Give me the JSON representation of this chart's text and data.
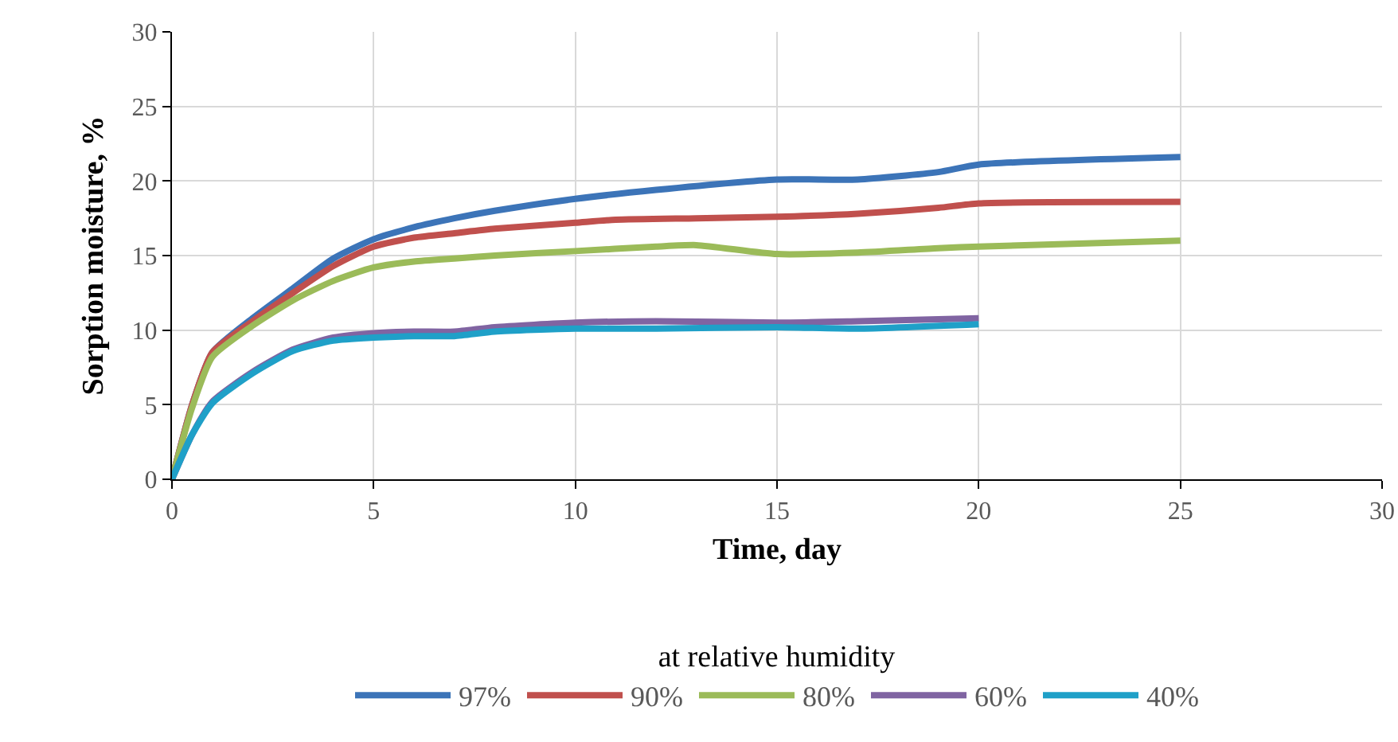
{
  "chart_data": {
    "type": "line",
    "xlabel": "Time, day",
    "ylabel": "Sorption moisture, %",
    "legend_title": "at relative humidity",
    "legend": "bottom",
    "grid": true,
    "line_style": "solid",
    "marker": "none",
    "xlim": [
      0,
      30
    ],
    "xticks": [
      0,
      5,
      10,
      15,
      20,
      25,
      30
    ],
    "ylim": [
      0,
      30
    ],
    "yticks": [
      0,
      5,
      10,
      15,
      20,
      25,
      30
    ],
    "series": [
      {
        "name": "97%",
        "color": "#3c74b8",
        "x": [
          0,
          0.5,
          1,
          2,
          3,
          4,
          5,
          6,
          7,
          8,
          10,
          12,
          15,
          17,
          19,
          20,
          25
        ],
        "values": [
          0,
          5,
          8.5,
          10.8,
          12.8,
          14.8,
          16.1,
          16.9,
          17.5,
          18.0,
          18.8,
          19.4,
          20.1,
          20.1,
          20.6,
          21.1,
          21.6
        ]
      },
      {
        "name": "90%",
        "color": "#c0504d",
        "x": [
          0,
          0.5,
          1,
          2,
          3,
          4,
          5,
          6,
          7,
          8,
          10,
          11,
          13,
          15,
          17,
          19,
          20,
          25
        ],
        "values": [
          0,
          5,
          8.5,
          10.6,
          12.5,
          14.3,
          15.6,
          16.2,
          16.5,
          16.8,
          17.2,
          17.4,
          17.5,
          17.6,
          17.8,
          18.2,
          18.5,
          18.6
        ]
      },
      {
        "name": "80%",
        "color": "#9bbb59",
        "x": [
          0,
          0.5,
          1,
          2,
          3,
          4,
          5,
          6,
          7,
          8,
          10,
          12,
          13,
          15,
          17,
          19,
          20,
          25
        ],
        "values": [
          0,
          4.8,
          8.2,
          10.3,
          12.0,
          13.3,
          14.2,
          14.6,
          14.8,
          15.0,
          15.3,
          15.6,
          15.7,
          15.1,
          15.2,
          15.5,
          15.6,
          16.0
        ]
      },
      {
        "name": "60%",
        "color": "#8064a2",
        "x": [
          0,
          0.5,
          1,
          2,
          3,
          4,
          5,
          6,
          7,
          8,
          10,
          12,
          15,
          17,
          20
        ],
        "values": [
          0,
          3,
          5.2,
          7.2,
          8.7,
          9.5,
          9.8,
          9.9,
          9.9,
          10.2,
          10.5,
          10.6,
          10.5,
          10.6,
          10.8
        ]
      },
      {
        "name": "40%",
        "color": "#1fa0c8",
        "x": [
          0,
          0.5,
          1,
          2,
          3,
          4,
          5,
          6,
          7,
          8,
          10,
          12,
          15,
          17,
          20
        ],
        "values": [
          0,
          3,
          5.1,
          7.1,
          8.6,
          9.3,
          9.5,
          9.6,
          9.6,
          9.9,
          10.1,
          10.1,
          10.2,
          10.1,
          10.4
        ]
      }
    ]
  }
}
